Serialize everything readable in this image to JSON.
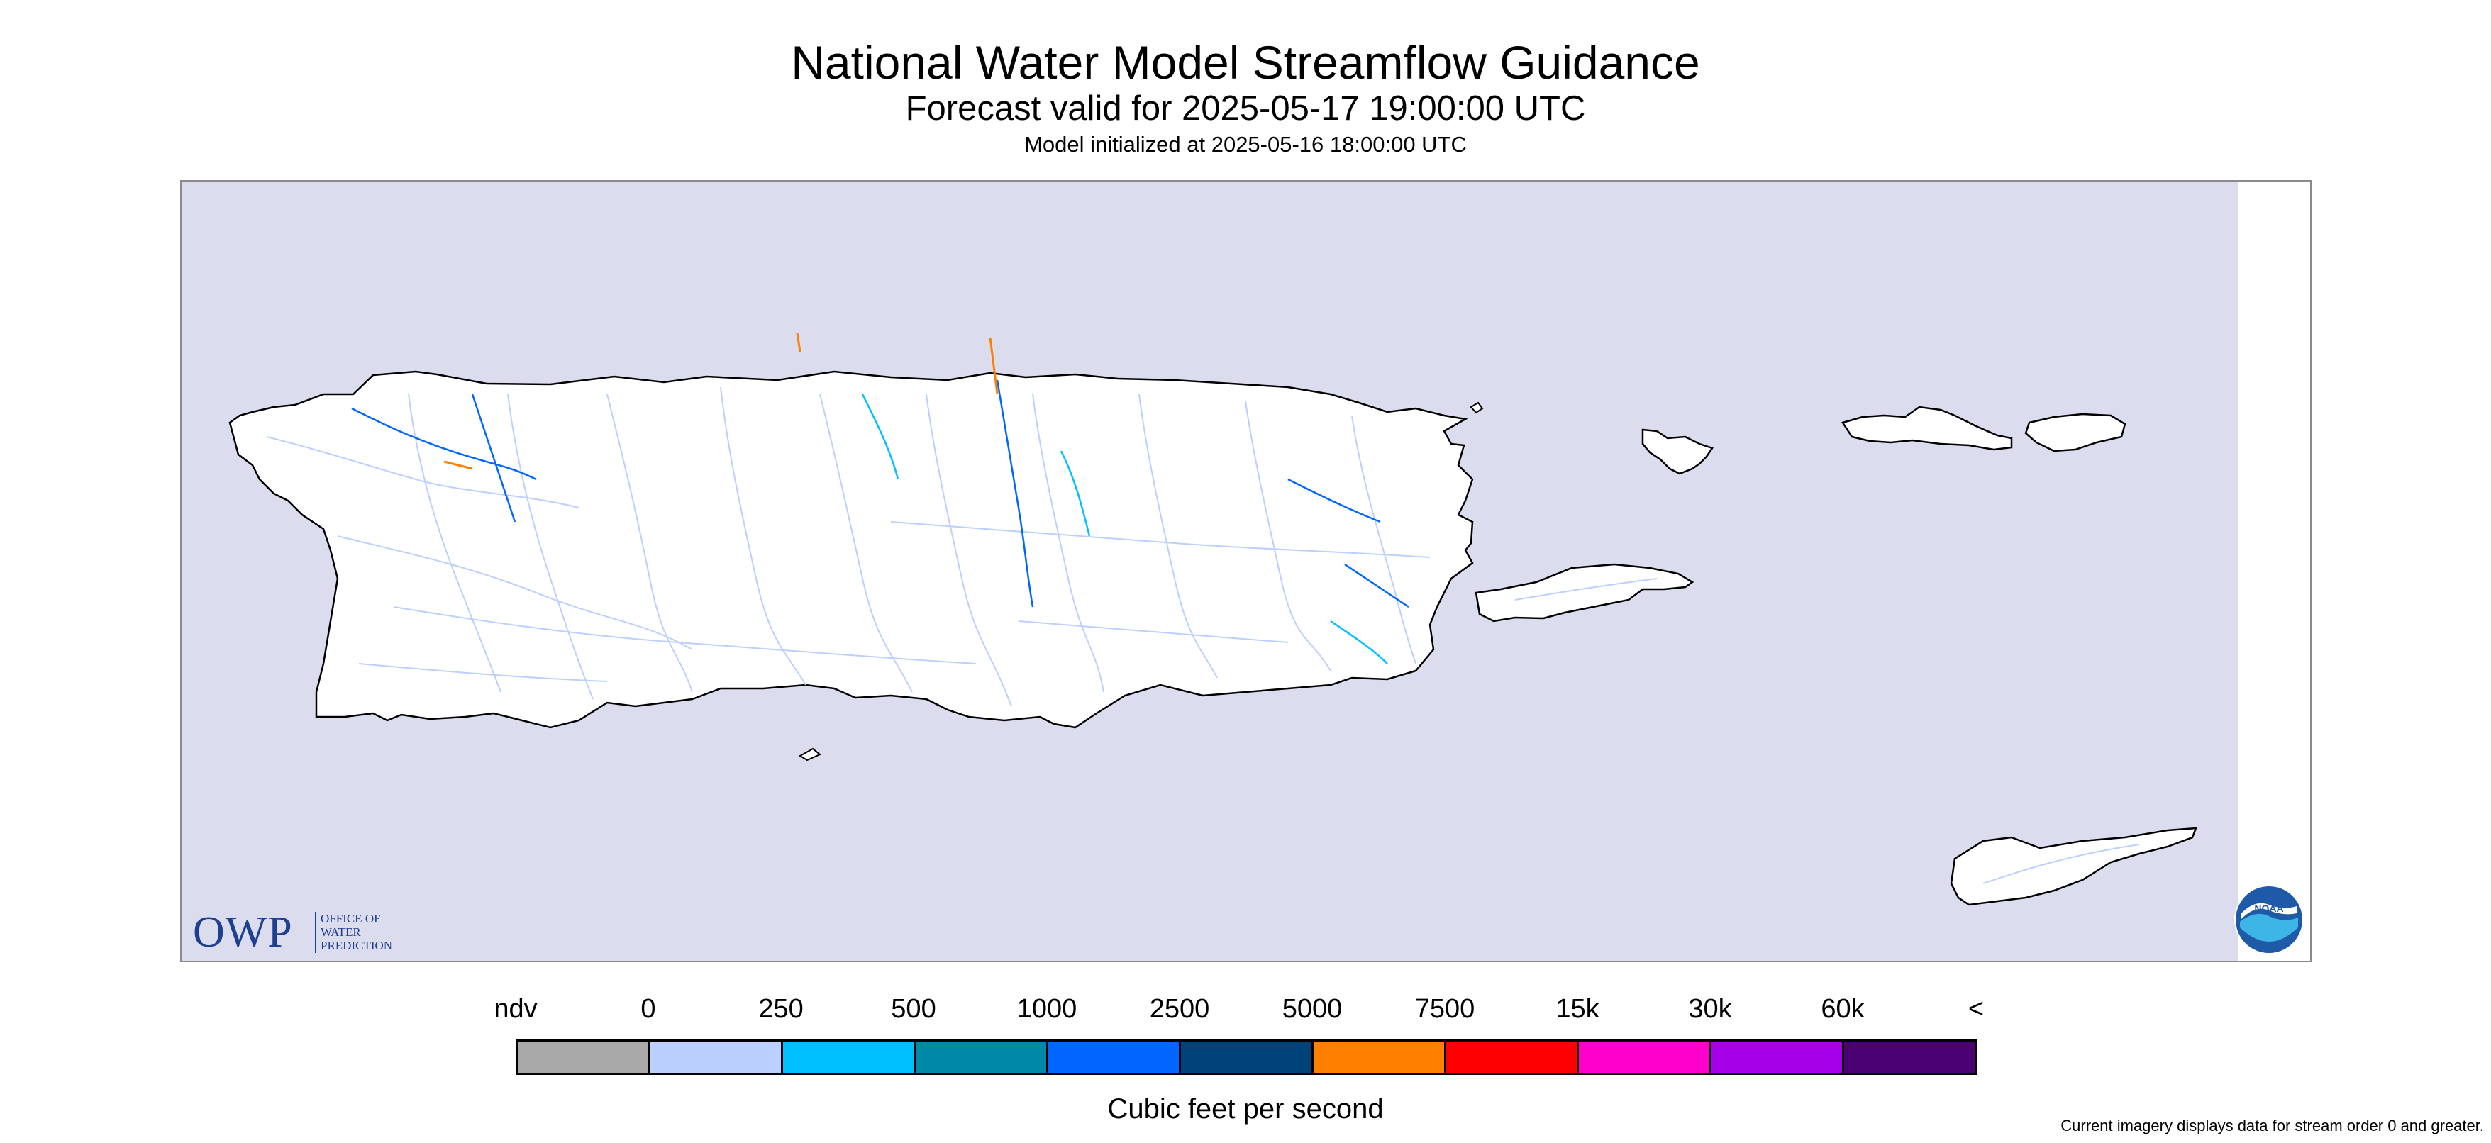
{
  "header": {
    "title": "National Water Model Streamflow Guidance",
    "forecast_valid": "Forecast valid for 2025-05-17 19:00:00 UTC",
    "model_initialized": "Model initialized at 2025-05-16 18:00:00 UTC"
  },
  "map": {
    "ocean_color": "#dcdcef",
    "land_color": "#ffffff",
    "coastline_color": "#000000",
    "stream_color_default": "#bcd0ff",
    "regions": [
      "Puerto Rico",
      "Vieques",
      "Culebra",
      "St. Thomas",
      "St. John",
      "St. Croix"
    ]
  },
  "logos": {
    "owp_main": "OWP",
    "owp_lines": [
      "OFFICE OF",
      "WATER",
      "PREDICTION"
    ],
    "noaa": "NOAA"
  },
  "legend": {
    "labels": [
      "ndv",
      "0",
      "250",
      "500",
      "1000",
      "2500",
      "5000",
      "7500",
      "15k",
      "30k",
      "60k",
      "<"
    ],
    "colors": [
      "#a9a9a9",
      "#bcd0ff",
      "#00bfff",
      "#0088a8",
      "#0066ff",
      "#00437a",
      "#ff8000",
      "#ff0000",
      "#ff00cc",
      "#a600e6",
      "#4b0073"
    ],
    "units": "Cubic feet per second"
  },
  "footnote": "Current imagery displays data for stream order 0 and greater."
}
